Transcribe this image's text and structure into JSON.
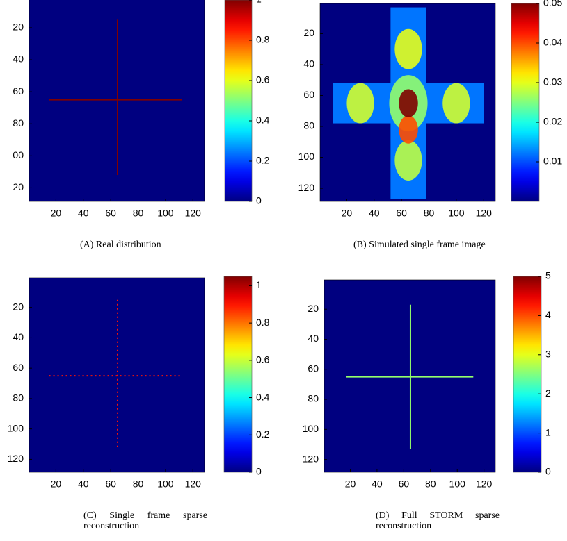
{
  "chart_data": [
    {
      "type": "heatmap",
      "caption": "(A) Real distribution",
      "xlim": [
        0.5,
        128.5
      ],
      "ylim": [
        128.5,
        0.5
      ],
      "xticks": [
        20,
        40,
        60,
        80,
        100,
        120
      ],
      "yticks": [
        20,
        40,
        60,
        80,
        {
          "value": 100,
          "label": "00"
        },
        {
          "value": 120,
          "label": "20"
        }
      ],
      "clim": [
        0,
        1
      ],
      "cticks": [
        0,
        0.2,
        0.4,
        0.6,
        0.8,
        1
      ],
      "background": 0,
      "line_style": "solid",
      "lines": [
        {
          "x": [
            15,
            112
          ],
          "y": [
            65,
            65
          ],
          "value": 1
        },
        {
          "x": [
            65,
            65
          ],
          "y": [
            15,
            112
          ],
          "value": 1
        }
      ]
    },
    {
      "type": "heatmap",
      "caption": "(B) Simulated single frame image",
      "xlim": [
        0.5,
        128.5
      ],
      "ylim": [
        128.5,
        0.5
      ],
      "xticks": [
        20,
        40,
        60,
        80,
        100,
        120
      ],
      "yticks": [
        20,
        40,
        60,
        80,
        100,
        120
      ],
      "clim": [
        0,
        0.05
      ],
      "cticks": [
        0.01,
        0.02,
        0.03,
        0.04,
        0.05
      ],
      "background": 0,
      "regions": [
        {
          "x": [
            52,
            78
          ],
          "y": [
            3,
            127
          ],
          "value": 0.012
        },
        {
          "x": [
            10,
            120
          ],
          "y": [
            52,
            78
          ],
          "value": 0.012
        }
      ],
      "spots": [
        {
          "x": 65,
          "y": 65,
          "r": 14,
          "value": 0.026
        },
        {
          "x": 65,
          "y": 30,
          "r": 10,
          "value": 0.03
        },
        {
          "x": 30,
          "y": 65,
          "r": 10,
          "value": 0.029
        },
        {
          "x": 100,
          "y": 65,
          "r": 10,
          "value": 0.029
        },
        {
          "x": 65,
          "y": 102,
          "r": 10,
          "value": 0.028
        },
        {
          "x": 65,
          "y": 82,
          "r": 7,
          "value": 0.04
        },
        {
          "x": 65,
          "y": 65,
          "r": 7,
          "value": 0.05
        }
      ]
    },
    {
      "type": "heatmap",
      "caption": "(C) Single frame sparse reconstruction",
      "xlim": [
        0.5,
        128.5
      ],
      "ylim": [
        128.5,
        0.5
      ],
      "xticks": [
        20,
        40,
        60,
        80,
        100,
        120
      ],
      "yticks": [
        20,
        40,
        60,
        80,
        100,
        120
      ],
      "clim": [
        0,
        1.05
      ],
      "cticks": [
        0,
        0.2,
        0.4,
        0.6,
        0.8,
        1
      ],
      "background": 0,
      "line_style": "dotted",
      "lines": [
        {
          "x": [
            15,
            112
          ],
          "y": [
            65,
            65
          ],
          "value": 0.9
        },
        {
          "x": [
            65,
            65
          ],
          "y": [
            15,
            112
          ],
          "value": 0.9
        }
      ]
    },
    {
      "type": "heatmap",
      "caption": "(D) Full STORM sparse reconstruction",
      "xlim": [
        0.5,
        128.5
      ],
      "ylim": [
        128.5,
        0.5
      ],
      "xticks": [
        20,
        40,
        60,
        80,
        100,
        120
      ],
      "yticks": [
        20,
        40,
        60,
        80,
        100,
        120
      ],
      "clim": [
        0,
        5
      ],
      "cticks": [
        0,
        1,
        2,
        3,
        4,
        5
      ],
      "background": 0,
      "line_style": "solid",
      "lines": [
        {
          "x": [
            17,
            112
          ],
          "y": [
            65,
            65
          ],
          "value": 2.6
        },
        {
          "x": [
            65,
            65
          ],
          "y": [
            17,
            113
          ],
          "value": 2.6
        }
      ]
    }
  ]
}
